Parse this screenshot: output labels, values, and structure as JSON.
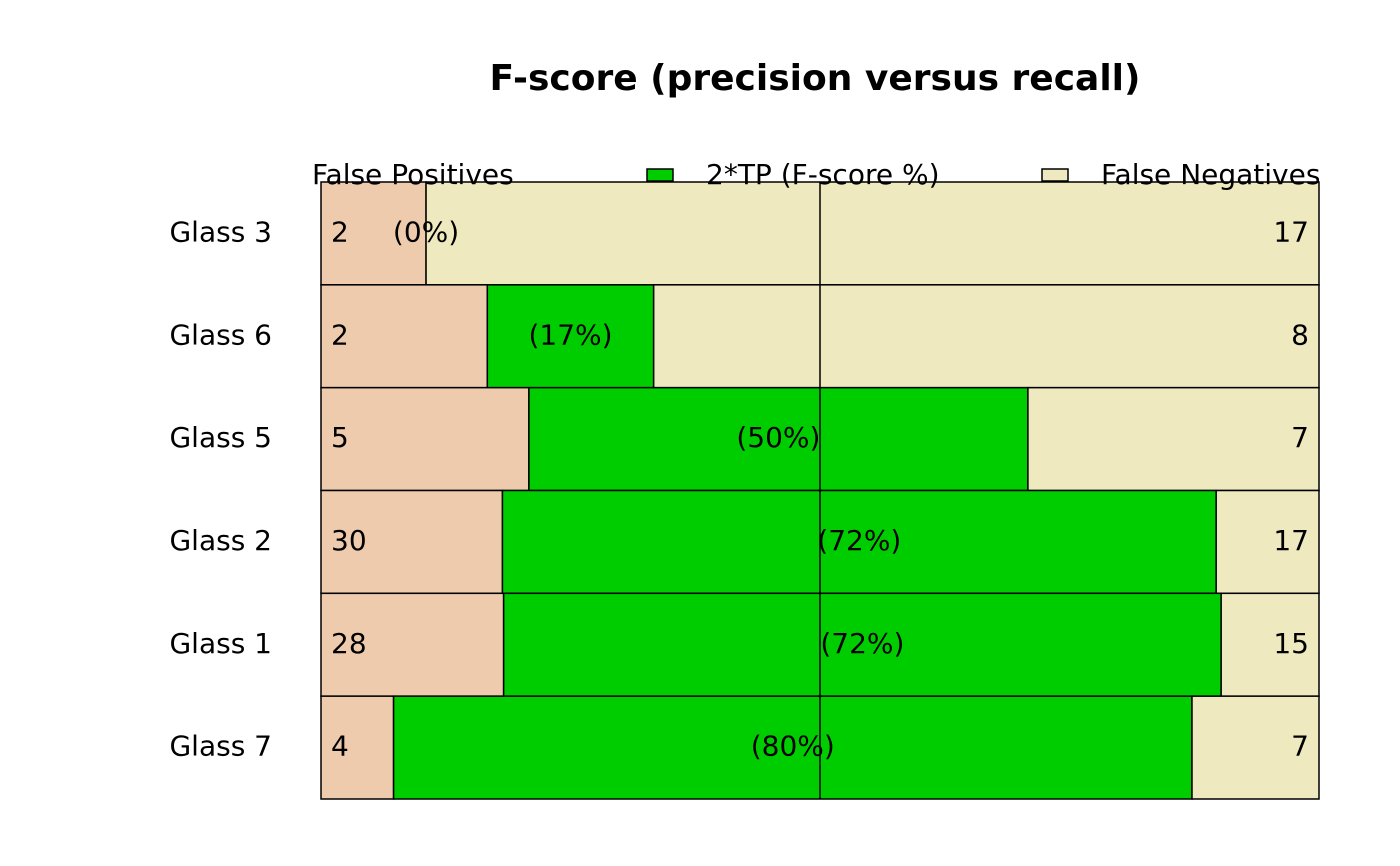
{
  "chart_data": {
    "type": "stacked-bar-horizontal",
    "title": "F-score (precision versus recall)",
    "categories": [
      "Glass 3",
      "Glass 6",
      "Glass 5",
      "Glass 2",
      "Glass 1",
      "Glass 7"
    ],
    "series": [
      {
        "name": "False Positives",
        "color": "#eecbad",
        "values": [
          2,
          2,
          5,
          30,
          28,
          4
        ]
      },
      {
        "name": "2*TP (F-score %)",
        "color": "#00cd00",
        "values": [
          0,
          2,
          12,
          118,
          110,
          44
        ]
      },
      {
        "name": "False Negatives",
        "color": "#eee9bf",
        "values": [
          17,
          8,
          7,
          17,
          15,
          7
        ]
      }
    ],
    "fscore_values": [
      0,
      17,
      50,
      72,
      72,
      80
    ],
    "fscore_labels": [
      "(0%)",
      "(17%)",
      "(50%)",
      "(72%)",
      "(72%)",
      "(80%)"
    ]
  }
}
